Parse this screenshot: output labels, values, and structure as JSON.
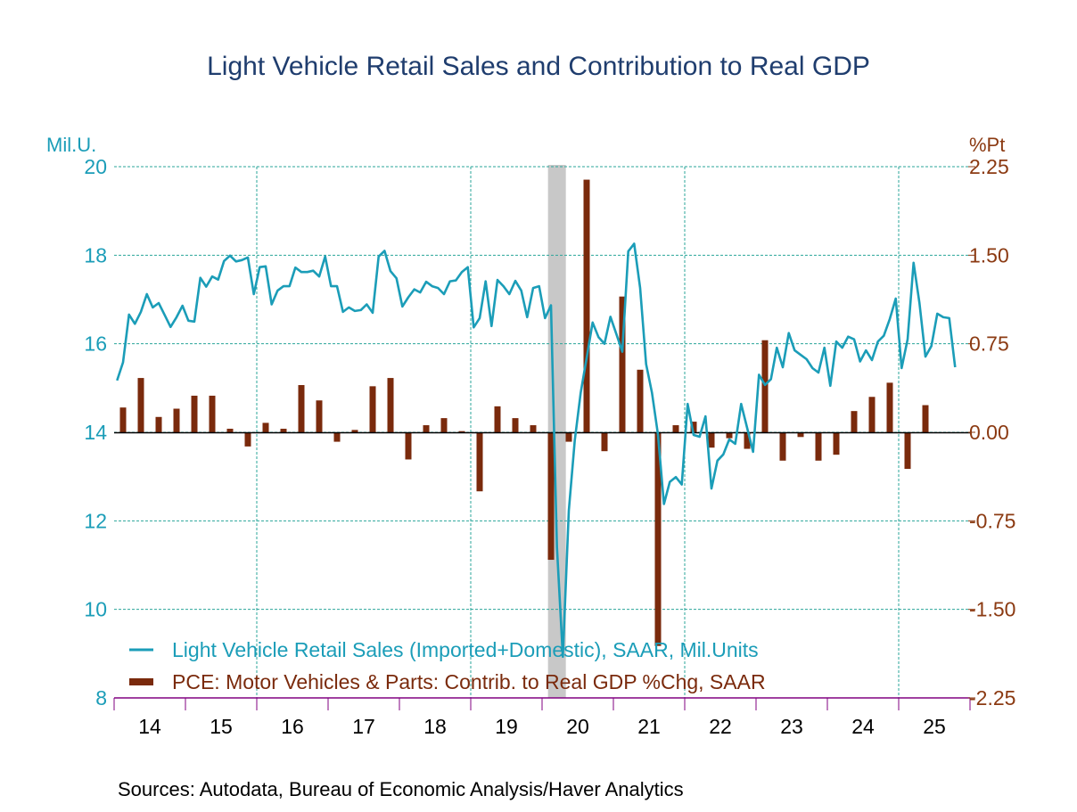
{
  "chart_data": {
    "type": "bar+line",
    "title": "Light Vehicle Retail Sales and Contribution to Real GDP",
    "source": "Sources:  Autodata, Bureau of Economic Analysis/Haver Analytics",
    "left_axis": {
      "unit_label": "Mil.U.",
      "range": [
        8,
        20
      ],
      "ticks": [
        "20",
        "18",
        "16",
        "14",
        "12",
        "10",
        "8"
      ],
      "tick_values": [
        20,
        18,
        16,
        14,
        12,
        10,
        8
      ]
    },
    "right_axis": {
      "unit_label": "%Pt",
      "range": [
        -2.25,
        2.25
      ],
      "ticks": [
        "2.25",
        "1.50",
        "0.75",
        "0.00",
        "-0.75",
        "-1.50",
        "-2.25"
      ],
      "tick_values": [
        2.25,
        1.5,
        0.75,
        0,
        -0.75,
        -1.5,
        -2.25
      ]
    },
    "x_axis": {
      "range": [
        "2014-01",
        "2025-12"
      ],
      "tick_labels": [
        "14",
        "15",
        "16",
        "17",
        "18",
        "19",
        "20",
        "21",
        "22",
        "23",
        "24",
        "25"
      ]
    },
    "recession": {
      "start": "2020-02",
      "end": "2020-04",
      "color": "#c8c8c8"
    },
    "grid": true,
    "legend_placement": "bottom-left",
    "series": [
      {
        "name": "Light Vehicle Retail Sales (Imported+Domestic), SAAR, Mil.Units",
        "type": "line",
        "axis": "left",
        "frequency": "monthly",
        "start": "2014-01",
        "color": "#1b9db8",
        "values": [
          15.17,
          15.58,
          16.66,
          16.45,
          16.72,
          17.12,
          16.82,
          16.92,
          16.65,
          16.38,
          16.6,
          16.86,
          16.52,
          16.5,
          17.49,
          17.29,
          17.52,
          17.45,
          17.87,
          17.99,
          17.86,
          17.89,
          17.95,
          17.12,
          17.73,
          17.75,
          16.89,
          17.2,
          17.3,
          17.3,
          17.72,
          17.62,
          17.62,
          17.65,
          17.52,
          17.97,
          17.3,
          17.3,
          16.72,
          16.82,
          16.74,
          16.76,
          16.89,
          16.7,
          17.97,
          18.1,
          17.64,
          17.48,
          16.84,
          17.05,
          17.23,
          17.16,
          17.4,
          17.3,
          17.26,
          17.12,
          17.41,
          17.43,
          17.62,
          17.73,
          16.37,
          16.58,
          17.41,
          16.4,
          17.44,
          17.3,
          17.12,
          17.42,
          17.2,
          16.6,
          17.26,
          17.3,
          16.58,
          16.87,
          11.4,
          8.93,
          12.23,
          13.82,
          14.89,
          15.68,
          16.48,
          16.15,
          16.0,
          16.61,
          16.22,
          15.82,
          18.09,
          18.26,
          17.26,
          15.54,
          14.89,
          13.95,
          12.38,
          12.88,
          12.99,
          12.82,
          14.64,
          13.94,
          13.9,
          14.36,
          12.73,
          13.36,
          13.5,
          13.84,
          13.74,
          14.64,
          14.1,
          13.56,
          15.3,
          15.07,
          15.2,
          15.91,
          15.47,
          16.24,
          15.85,
          15.75,
          15.65,
          15.45,
          15.35,
          15.91,
          15.05,
          16.05,
          15.91,
          16.16,
          16.1,
          15.6,
          15.85,
          15.63,
          16.05,
          16.18,
          16.56,
          17.02,
          15.45,
          16.1,
          17.83,
          16.92,
          15.71,
          15.95,
          16.68,
          16.6,
          16.58,
          15.47
        ]
      },
      {
        "name": "PCE: Motor Vehicles & Parts: Contrib. to Real GDP %Chg, SAAR",
        "type": "bar",
        "axis": "right",
        "frequency": "quarterly",
        "start": "2014-Q1",
        "color": "#7a2a0c",
        "values": [
          0.21,
          0.46,
          0.13,
          0.2,
          0.31,
          0.31,
          0.03,
          -0.12,
          0.08,
          0.03,
          0.4,
          0.27,
          -0.08,
          0.02,
          0.39,
          0.46,
          -0.23,
          0.06,
          0.12,
          0.01,
          -0.5,
          0.22,
          0.12,
          0.06,
          -1.08,
          -0.08,
          2.14,
          -0.16,
          1.15,
          0.53,
          -1.81,
          0.06,
          0.09,
          -0.13,
          -0.05,
          -0.14,
          0.78,
          -0.24,
          -0.04,
          -0.24,
          -0.19,
          0.18,
          0.3,
          0.42,
          -0.31,
          0.23
        ]
      }
    ],
    "colors": {
      "title": "#1f3d6e",
      "left_axis": "#1b9db8",
      "right_axis": "#8b3a12",
      "grid": "#2aa59a",
      "x_axis": "#800080"
    }
  }
}
